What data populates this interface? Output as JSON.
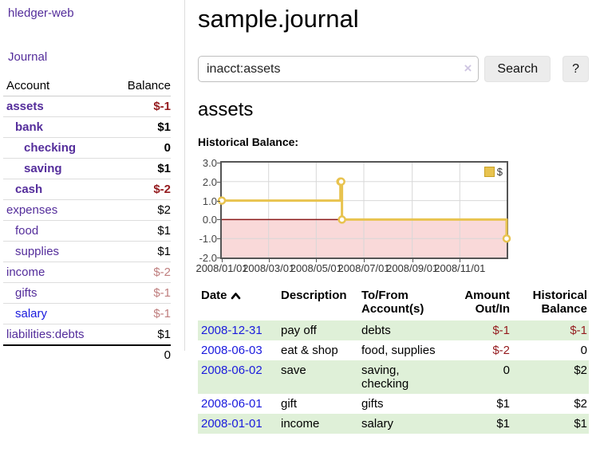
{
  "colors": {
    "link_purple": "#542d9b",
    "link_blue": "#1a1add",
    "negative_strong": "#941b1e",
    "negative_muted": "#bf7e7e",
    "row_green": "#dff0d8",
    "series_gold": "#e8c34f"
  },
  "sidebar": {
    "brand": "hledger-web",
    "journal_link": "Journal",
    "accounts_table": {
      "headers": {
        "account": "Account",
        "balance": "Balance"
      },
      "rows": [
        {
          "label": "assets",
          "balance": "$-1",
          "level": 0,
          "bold": true,
          "balance_style": "neg-strong",
          "link_style": "purple"
        },
        {
          "label": "bank",
          "balance": "$1",
          "level": 1,
          "bold": true,
          "balance_style": "",
          "link_style": "purple"
        },
        {
          "label": "checking",
          "balance": "0",
          "level": 2,
          "bold": true,
          "balance_style": "",
          "link_style": "purple"
        },
        {
          "label": "saving",
          "balance": "$1",
          "level": 2,
          "bold": true,
          "balance_style": "",
          "link_style": "purple"
        },
        {
          "label": "cash",
          "balance": "$-2",
          "level": 1,
          "bold": true,
          "balance_style": "neg-strong",
          "link_style": "purple"
        },
        {
          "label": "expenses",
          "balance": "$2",
          "level": 0,
          "bold": false,
          "balance_style": "",
          "link_style": "purple"
        },
        {
          "label": "food",
          "balance": "$1",
          "level": 1,
          "bold": false,
          "balance_style": "",
          "link_style": "purple"
        },
        {
          "label": "supplies",
          "balance": "$1",
          "level": 1,
          "bold": false,
          "balance_style": "",
          "link_style": "purple"
        },
        {
          "label": "income",
          "balance": "$-2",
          "level": 0,
          "bold": false,
          "balance_style": "neg-muted",
          "link_style": "purple"
        },
        {
          "label": "gifts",
          "balance": "$-1",
          "level": 1,
          "bold": false,
          "balance_style": "neg-muted",
          "link_style": "purple"
        },
        {
          "label": "salary",
          "balance": "$-1",
          "level": 1,
          "bold": false,
          "balance_style": "neg-muted",
          "link_style": "blue"
        },
        {
          "label": "liabilities:debts",
          "balance": "$1",
          "level": 0,
          "bold": false,
          "balance_style": "",
          "link_style": "purple"
        }
      ],
      "total": "0"
    }
  },
  "main": {
    "title": "sample.journal",
    "search": {
      "value": "inacct:assets",
      "clear_icon": "×",
      "button_label": "Search",
      "help_label": "?"
    },
    "account_heading": "assets",
    "chart_heading": "Historical Balance:"
  },
  "chart_data": {
    "type": "line",
    "step": true,
    "title": "Historical Balance:",
    "legend": [
      "$"
    ],
    "legend_position": "top-right",
    "x_range": [
      "2008/01/01",
      "2008/12/31"
    ],
    "ylim": [
      -2,
      3
    ],
    "yticks": [
      "3.0",
      "2.0",
      "1.0",
      "0.0",
      "-1.0",
      "-2.0"
    ],
    "xticks": [
      "2008/01/01",
      "2008/03/01",
      "2008/05/01",
      "2008/07/01",
      "2008/09/01",
      "2008/11/01"
    ],
    "series": [
      {
        "name": "$",
        "color": "#e8c34f",
        "x": [
          "2008/01/01",
          "2008/06/01",
          "2008/06/02",
          "2008/06/03",
          "2008/12/31"
        ],
        "y": [
          1,
          2,
          2,
          0,
          -1
        ]
      }
    ],
    "grid_color": "#d8d8d8",
    "negative_fill": "#f9d9d9",
    "zero_line_color": "#8b1a1a",
    "plot_border_color": "#555555"
  },
  "register_table": {
    "headers": {
      "date": "Date",
      "description": "Description",
      "account": "To/From Account(s)",
      "amount": "Amount Out/In",
      "balance": "Historical Balance"
    },
    "rows": [
      {
        "date": "2008-12-31",
        "description": "pay off",
        "account": "debts",
        "amount": "$-1",
        "balance": "$-1",
        "amount_negative": true,
        "balance_negative": true,
        "shaded": true
      },
      {
        "date": "2008-06-03",
        "description": "eat & shop",
        "account": "food, supplies",
        "amount": "$-2",
        "balance": "0",
        "amount_negative": true,
        "balance_negative": false,
        "shaded": false
      },
      {
        "date": "2008-06-02",
        "description": "save",
        "account": "saving, checking",
        "amount": "0",
        "balance": "$2",
        "amount_negative": false,
        "balance_negative": false,
        "shaded": true
      },
      {
        "date": "2008-06-01",
        "description": "gift",
        "account": "gifts",
        "amount": "$1",
        "balance": "$2",
        "amount_negative": false,
        "balance_negative": false,
        "shaded": false
      },
      {
        "date": "2008-01-01",
        "description": "income",
        "account": "salary",
        "amount": "$1",
        "balance": "$1",
        "amount_negative": false,
        "balance_negative": false,
        "shaded": true
      }
    ]
  }
}
